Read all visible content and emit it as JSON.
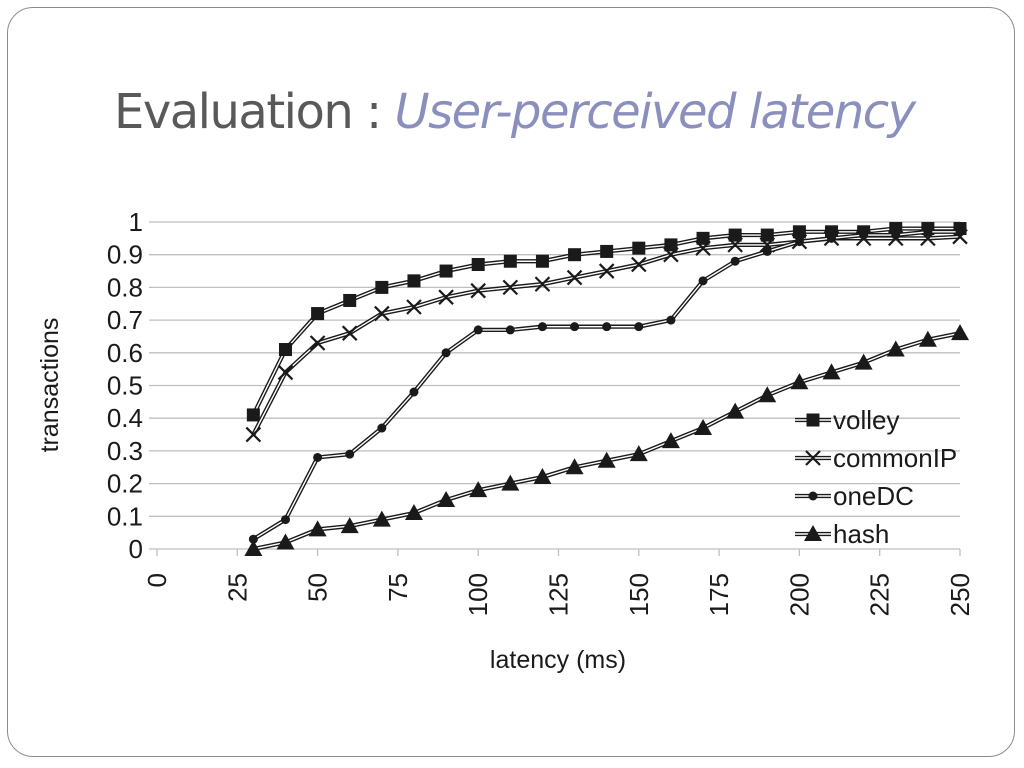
{
  "slide": {
    "title_plain": "Evaluation : ",
    "title_accent": "User-perceived latency"
  },
  "colors": {
    "title_plain": "#595959",
    "title_accent": "#8a8fbd",
    "series": "#1a1a1a",
    "grid": "#bfbfbf"
  },
  "chart_data": {
    "type": "line",
    "xlabel": "latency (ms)",
    "ylabel": "transactions",
    "xlim": [
      0,
      250
    ],
    "ylim": [
      0,
      1
    ],
    "x_ticks": [
      "0",
      "25",
      "50",
      "75",
      "100",
      "125",
      "150",
      "175",
      "200",
      "225",
      "250"
    ],
    "y_ticks": [
      "0",
      "0.1",
      "0.2",
      "0.3",
      "0.4",
      "0.5",
      "0.6",
      "0.7",
      "0.8",
      "0.9",
      "1"
    ],
    "grid": "horizontal",
    "legend_position": "bottom-right",
    "x": [
      30,
      40,
      50,
      60,
      70,
      80,
      90,
      100,
      110,
      120,
      130,
      140,
      150,
      160,
      170,
      180,
      190,
      200,
      210,
      220,
      230,
      240,
      250
    ],
    "series": [
      {
        "name": "volley",
        "marker": "square",
        "values": [
          0.41,
          0.61,
          0.72,
          0.76,
          0.8,
          0.82,
          0.85,
          0.87,
          0.88,
          0.88,
          0.9,
          0.91,
          0.92,
          0.93,
          0.95,
          0.96,
          0.96,
          0.97,
          0.97,
          0.97,
          0.98,
          0.98,
          0.98
        ]
      },
      {
        "name": "commonIP",
        "marker": "x",
        "values": [
          0.35,
          0.54,
          0.63,
          0.66,
          0.72,
          0.74,
          0.77,
          0.79,
          0.8,
          0.81,
          0.83,
          0.85,
          0.87,
          0.9,
          0.92,
          0.93,
          0.93,
          0.94,
          0.95,
          0.95,
          0.95,
          0.95,
          0.955
        ]
      },
      {
        "name": "oneDC",
        "marker": "circle",
        "values": [
          0.03,
          0.09,
          0.28,
          0.29,
          0.37,
          0.48,
          0.6,
          0.67,
          0.67,
          0.68,
          0.68,
          0.68,
          0.68,
          0.7,
          0.82,
          0.88,
          0.91,
          0.94,
          0.95,
          0.96,
          0.96,
          0.97,
          0.97
        ]
      },
      {
        "name": "hash",
        "marker": "triangle",
        "values": [
          0.0,
          0.02,
          0.06,
          0.07,
          0.09,
          0.11,
          0.15,
          0.18,
          0.2,
          0.22,
          0.25,
          0.27,
          0.29,
          0.33,
          0.37,
          0.42,
          0.47,
          0.51,
          0.54,
          0.57,
          0.61,
          0.64,
          0.66
        ]
      }
    ]
  }
}
